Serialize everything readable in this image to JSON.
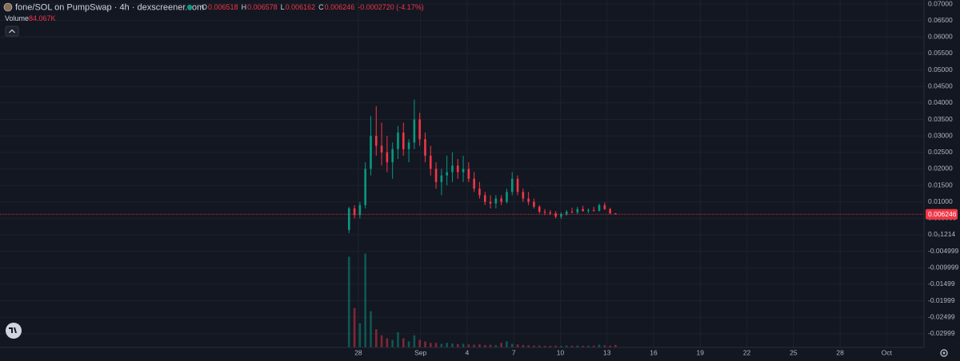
{
  "chart_data": {
    "type": "candlestick",
    "title": "fone/SOL on PumpSwap · 4h · dexscreener.com",
    "ohlc_keys": [
      "O",
      "H",
      "L",
      "C"
    ],
    "change_label": "-0.0002720 (-4.17%)",
    "volume_label": "Volume",
    "volume_last_label": "84.067K",
    "up_color": "#089981",
    "down_color": "#f23645",
    "grid": true,
    "x": [
      -0.6,
      -0.25,
      0.1,
      0.45,
      0.8,
      1.15,
      1.5,
      1.85,
      2.2,
      2.55,
      2.9,
      3.25,
      3.6,
      3.95,
      4.3,
      4.65,
      5,
      5.35,
      5.7,
      6.05,
      6.4,
      6.75,
      7.1,
      7.45,
      7.8,
      8.15,
      8.5,
      8.85,
      9.2,
      9.55,
      9.9,
      10.25,
      10.6,
      10.95,
      11.3,
      11.65,
      12,
      12.35,
      12.7,
      13.05,
      13.4,
      13.75,
      14.1,
      14.45,
      14.8,
      15.15,
      15.5,
      15.85,
      16.2,
      16.55
    ],
    "open": [
      0.0015,
      0.008,
      0.006,
      0.009,
      0.02,
      0.03,
      0.027,
      0.025,
      0.022,
      0.026,
      0.031,
      0.026,
      0.028,
      0.035,
      0.029,
      0.024,
      0.02,
      0.016,
      0.018,
      0.019,
      0.021,
      0.019,
      0.02,
      0.017,
      0.014,
      0.012,
      0.01,
      0.0095,
      0.011,
      0.01,
      0.013,
      0.017,
      0.013,
      0.011,
      0.01,
      0.0085,
      0.007,
      0.0068,
      0.0065,
      0.0055,
      0.0062,
      0.007,
      0.0068,
      0.0078,
      0.0072,
      0.0075,
      0.0073,
      0.009,
      0.0078,
      0.006518
    ],
    "high": [
      0.0085,
      0.009,
      0.01,
      0.022,
      0.036,
      0.039,
      0.034,
      0.03,
      0.028,
      0.033,
      0.034,
      0.029,
      0.041,
      0.037,
      0.031,
      0.027,
      0.022,
      0.02,
      0.024,
      0.025,
      0.023,
      0.024,
      0.022,
      0.019,
      0.016,
      0.013,
      0.012,
      0.012,
      0.012,
      0.014,
      0.019,
      0.018,
      0.014,
      0.013,
      0.011,
      0.009,
      0.0078,
      0.0075,
      0.0072,
      0.0068,
      0.0075,
      0.0082,
      0.0085,
      0.0088,
      0.008,
      0.0085,
      0.0095,
      0.0098,
      0.0082,
      0.006578
    ],
    "low": [
      0.0005,
      0.005,
      0.005,
      0.008,
      0.018,
      0.024,
      0.021,
      0.019,
      0.017,
      0.023,
      0.024,
      0.022,
      0.026,
      0.027,
      0.022,
      0.018,
      0.014,
      0.012,
      0.015,
      0.016,
      0.017,
      0.016,
      0.016,
      0.013,
      0.011,
      0.009,
      0.008,
      0.008,
      0.009,
      0.0095,
      0.012,
      0.012,
      0.01,
      0.009,
      0.008,
      0.0065,
      0.006,
      0.006,
      0.005,
      0.0048,
      0.0058,
      0.0065,
      0.0063,
      0.007,
      0.0065,
      0.007,
      0.007,
      0.0075,
      0.0062,
      0.006162
    ],
    "close": [
      0.008,
      0.006,
      0.009,
      0.02,
      0.03,
      0.027,
      0.025,
      0.022,
      0.026,
      0.031,
      0.026,
      0.028,
      0.035,
      0.029,
      0.024,
      0.02,
      0.016,
      0.018,
      0.019,
      0.021,
      0.019,
      0.02,
      0.017,
      0.014,
      0.012,
      0.01,
      0.0095,
      0.011,
      0.01,
      0.013,
      0.017,
      0.013,
      0.011,
      0.01,
      0.0085,
      0.007,
      0.0068,
      0.0065,
      0.0055,
      0.0062,
      0.007,
      0.0068,
      0.0078,
      0.0072,
      0.0075,
      0.0073,
      0.009,
      0.0078,
      0.006518,
      0.006246
    ],
    "volume": [
      3000,
      1300,
      800,
      3100,
      1200,
      600,
      400,
      300,
      250,
      500,
      300,
      200,
      400,
      250,
      200,
      150,
      150,
      120,
      150,
      130,
      110,
      120,
      100,
      90,
      100,
      80,
      90,
      80,
      150,
      200,
      120,
      100,
      80,
      70,
      60,
      60,
      50,
      50,
      60,
      50,
      60,
      55,
      60,
      50,
      55,
      60,
      90,
      70,
      60,
      84.067
    ],
    "volume_lim": [
      0,
      3300
    ],
    "ylim": [
      -0.03415,
      0.07121
    ],
    "yticks": [
      {
        "value": 0.07,
        "label": "0.07000"
      },
      {
        "value": 0.065,
        "label": "0.06500"
      },
      {
        "value": 0.06,
        "label": "0.06000"
      },
      {
        "value": 0.055,
        "label": "0.05500"
      },
      {
        "value": 0.05,
        "label": "0.05000"
      },
      {
        "value": 0.045,
        "label": "0.04500"
      },
      {
        "value": 0.04,
        "label": "0.04000"
      },
      {
        "value": 0.035,
        "label": "0.03500"
      },
      {
        "value": 0.03,
        "label": "0.03000"
      },
      {
        "value": 0.025,
        "label": "0.02500"
      },
      {
        "value": 0.02,
        "label": "0.02000"
      },
      {
        "value": 0.015,
        "label": "0.01500"
      },
      {
        "value": 0.01,
        "label": "0.01000"
      },
      {
        "value": 0.005,
        "label": "0.005000"
      },
      {
        "value": 1.214e-06,
        "label": "0.0₅1214"
      },
      -0.004999,
      -0.009999,
      -0.01499,
      -0.01999,
      -0.02499,
      -0.02999
    ],
    "xlim": [
      -23.06,
      36.4
    ],
    "xticks": [
      {
        "value": 0,
        "label": "28"
      },
      {
        "value": 4,
        "label": "Sep"
      },
      {
        "value": 7,
        "label": "4"
      },
      {
        "value": 10,
        "label": "7"
      },
      {
        "value": 13,
        "label": "10"
      },
      {
        "value": 16,
        "label": "13"
      },
      {
        "value": 19,
        "label": "16"
      },
      {
        "value": 22,
        "label": "19"
      },
      {
        "value": 25,
        "label": "22"
      },
      {
        "value": 28,
        "label": "25"
      },
      {
        "value": 31,
        "label": "28"
      },
      {
        "value": 34,
        "label": "Oct"
      }
    ]
  }
}
